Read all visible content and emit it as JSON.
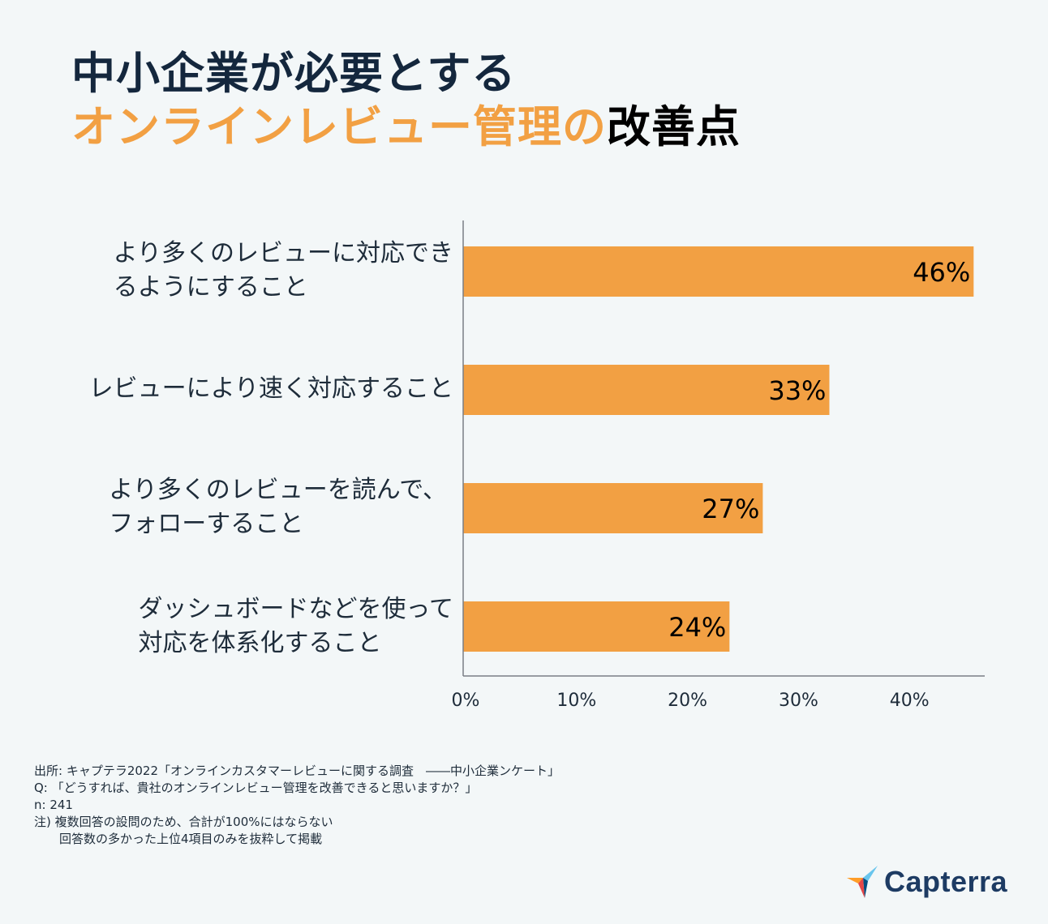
{
  "title": {
    "line1": "中小企業が必要とする",
    "line2_accent": "オンラインレビュー管理の",
    "line2_rest": "改善点"
  },
  "colors": {
    "bar": "#f2a043",
    "title": "#14273d",
    "accent": "#f2a043",
    "axis": "#7a7f85",
    "background": "#f3f7f8"
  },
  "chart_data": {
    "type": "bar",
    "orientation": "horizontal",
    "categories": [
      "より多くのレビューに対応できるようにすること",
      "レビューにより速く対応すること",
      "より多くのレビューを読んで、フォローすること",
      "ダッシュボードなどを使って対応を体系化すること"
    ],
    "category_lines": [
      "より多くのレビューに対応でき\nるようにすること",
      "レビューにより速く対応すること",
      "より多くのレビューを読んで、\nフォローすること",
      "ダッシュボードなどを使って\n対応を体系化すること"
    ],
    "values": [
      46,
      33,
      27,
      24
    ],
    "value_labels": [
      "46%",
      "33%",
      "27%",
      "24%"
    ],
    "x_ticks": [
      0,
      10,
      20,
      30,
      40
    ],
    "x_tick_labels": [
      "0%",
      "10%",
      "20%",
      "30%",
      "40%"
    ],
    "xlim": [
      0,
      47
    ],
    "title": "中小企業が必要とするオンラインレビュー管理の改善点",
    "xlabel": "",
    "ylabel": ""
  },
  "footnotes": {
    "source": "出所: キャプテラ2022「オンラインカスタマーレビューに関する調査　――中小企業ンケート」",
    "question": "Q: 「どうすれば、貴社のオンラインレビュー管理を改善できると思いますか？」",
    "n": "n: 241",
    "note1": "注) 複数回答の設問のため、合計が100%にはならない",
    "note2": "回答数の多かった上位4項目のみを抜粋して掲載"
  },
  "logo": {
    "text": "Capterra",
    "icon": "capterra-arrow-icon"
  }
}
